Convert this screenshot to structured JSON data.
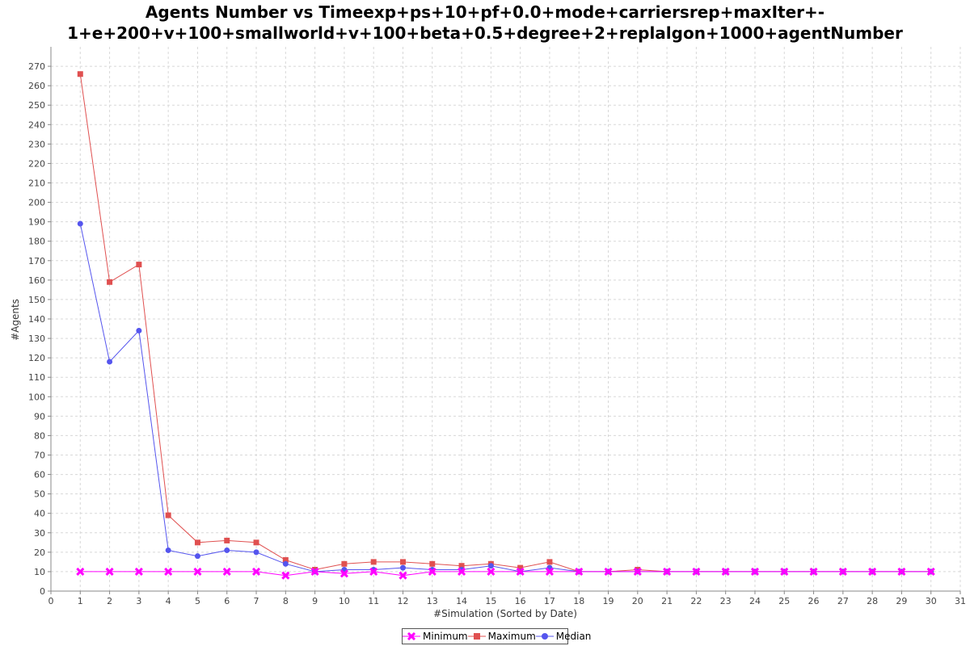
{
  "chart_data": {
    "type": "line",
    "title_lines": [
      "Agents Number vs Timeexp+ps+10+pf+0.0+mode+carriersrep+maxIter+-",
      "1+e+200+v+100+smallworld+v+100+beta+0.5+degree+2+replalgon+1000+agentNumber"
    ],
    "xlabel": "#Simulation (Sorted by Date)",
    "ylabel": "#Agents",
    "xlim": [
      0,
      31
    ],
    "ylim": [
      0,
      280
    ],
    "x_ticks": [
      0,
      1,
      2,
      3,
      4,
      5,
      6,
      7,
      8,
      9,
      10,
      11,
      12,
      13,
      14,
      15,
      16,
      17,
      18,
      19,
      20,
      21,
      22,
      23,
      24,
      25,
      26,
      27,
      28,
      29,
      30,
      31
    ],
    "y_ticks": [
      0,
      10,
      20,
      30,
      40,
      50,
      60,
      70,
      80,
      90,
      100,
      110,
      120,
      130,
      140,
      150,
      160,
      170,
      180,
      190,
      200,
      210,
      220,
      230,
      240,
      250,
      260,
      270
    ],
    "grid": true,
    "legend_position": "bottom",
    "x": [
      1,
      2,
      3,
      4,
      5,
      6,
      7,
      8,
      9,
      10,
      11,
      12,
      13,
      14,
      15,
      16,
      17,
      18,
      19,
      20,
      21,
      22,
      23,
      24,
      25,
      26,
      27,
      28,
      29,
      30
    ],
    "series": [
      {
        "name": "Minimum",
        "color": "#ff00ff",
        "marker": "x",
        "values": [
          10,
          10,
          10,
          10,
          10,
          10,
          10,
          8,
          10,
          9,
          10,
          8,
          10,
          10,
          10,
          10,
          10,
          10,
          10,
          10,
          10,
          10,
          10,
          10,
          10,
          10,
          10,
          10,
          10,
          10
        ]
      },
      {
        "name": "Maximum",
        "color": "#e05050",
        "marker": "square",
        "values": [
          266,
          159,
          168,
          39,
          25,
          26,
          25,
          16,
          11,
          14,
          15,
          15,
          14,
          13,
          14,
          12,
          15,
          10,
          10,
          11,
          10,
          10,
          10,
          10,
          10,
          10,
          10,
          10,
          10,
          10
        ]
      },
      {
        "name": "Median",
        "color": "#5555ee",
        "marker": "circle",
        "values": [
          189,
          118,
          134,
          21,
          18,
          21,
          20,
          14,
          10,
          11,
          11,
          12,
          11,
          11,
          13,
          10,
          12,
          10,
          10,
          10,
          10,
          10,
          10,
          10,
          10,
          10,
          10,
          10,
          10,
          10
        ]
      }
    ]
  }
}
